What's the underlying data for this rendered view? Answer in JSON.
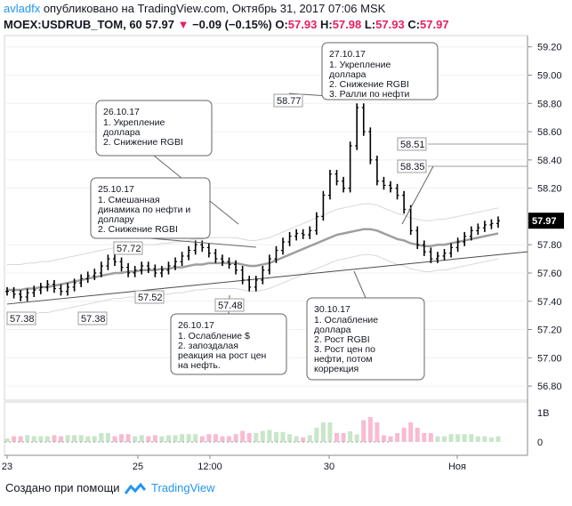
{
  "header": {
    "author": "avladfx",
    "published": "опубликовано на TradingView.com, Октябрь 31, 2017 07:06 MSK",
    "symbol": "MOEX:USDRUB_TOM, 60",
    "last": "57.97",
    "arrow": "▼",
    "change": "−0.09 (−0.15%)",
    "o_label": "O:",
    "o": "57.93",
    "h_label": "H:",
    "h": "57.98",
    "l_label": "L:",
    "l": "57.93",
    "c_label": "C:",
    "c": "57.97"
  },
  "footer": {
    "created_with": "Создано при помощи",
    "brand": "TradingView"
  },
  "colors": {
    "accent": "#2196f3",
    "down": "#e91e63",
    "bar": "#000000",
    "ma": "#9e9e9e",
    "volume_up": "#c8e6c9",
    "volume_down": "#f8bbd0"
  },
  "chart_data": {
    "type": "line",
    "series": [
      {
        "name": "USDRUB_TOM",
        "values": [
          57.47,
          57.45,
          57.43,
          57.46,
          57.48,
          57.5,
          57.52,
          57.49,
          57.47,
          57.5,
          57.53,
          57.56,
          57.58,
          57.6,
          57.65,
          57.7,
          57.68,
          57.64,
          57.6,
          57.62,
          57.65,
          57.63,
          57.6,
          57.62,
          57.65,
          57.68,
          57.72,
          57.76,
          57.8,
          57.78,
          57.74,
          57.7,
          57.68,
          57.66,
          57.62,
          57.55,
          57.5,
          57.55,
          57.62,
          57.7,
          57.76,
          57.82,
          57.86,
          57.88,
          57.87,
          57.9,
          58.0,
          58.15,
          58.3,
          58.25,
          58.2,
          58.5,
          58.77,
          58.6,
          58.4,
          58.25,
          58.22,
          58.2,
          58.15,
          58.05,
          57.9,
          57.8,
          57.75,
          57.7,
          57.72,
          57.74,
          57.78,
          57.82,
          57.86,
          57.9,
          57.92,
          57.94,
          57.95,
          57.97
        ]
      }
    ],
    "ma_series": [
      {
        "name": "SMA",
        "values": [
          57.48,
          57.48,
          57.48,
          57.49,
          57.49,
          57.5,
          57.5,
          57.51,
          57.52,
          57.53,
          57.54,
          57.55,
          57.56,
          57.57,
          57.58,
          57.59,
          57.6,
          57.6,
          57.61,
          57.61,
          57.62,
          57.62,
          57.62,
          57.63,
          57.63,
          57.64,
          57.64,
          57.65,
          57.66,
          57.66,
          57.67,
          57.67,
          57.67,
          57.67,
          57.67,
          57.66,
          57.65,
          57.65,
          57.66,
          57.67,
          57.69,
          57.71,
          57.73,
          57.75,
          57.77,
          57.79,
          57.81,
          57.83,
          57.85,
          57.87,
          57.88,
          57.89,
          57.9,
          57.91,
          57.91,
          57.9,
          57.88,
          57.86,
          57.84,
          57.83,
          57.81,
          57.8,
          57.79,
          57.79,
          57.8,
          57.8,
          57.81,
          57.82,
          57.83,
          57.84,
          57.85,
          57.86,
          57.87,
          57.88
        ]
      }
    ],
    "x_ticks": [
      "23",
      "25",
      "12:00",
      "30",
      "Ноя"
    ],
    "y_ticks": [
      59.2,
      59.0,
      58.8,
      58.6,
      58.4,
      58.2,
      57.8,
      57.6,
      57.4,
      57.2,
      57.0,
      56.8
    ],
    "ylim": [
      56.7,
      59.28
    ],
    "volume_ticks": [
      "1B",
      "0"
    ],
    "last_price": "57.97",
    "trendline": {
      "from": 57.38,
      "to": 57.75
    },
    "price_labels": [
      "57.38",
      "57.38",
      "57.72",
      "57.52",
      "57.48",
      "58.77",
      "58.51",
      "58.35"
    ],
    "annotations": [
      {
        "date": "26.10.17",
        "lines": [
          "1. Укрепление",
          "доллара",
          "2. Снижение RGBI"
        ]
      },
      {
        "date": "25.10.17",
        "lines": [
          "1. Смешанная",
          "динамика по нефти и",
          "доллару",
          "2. Снижение RGBI"
        ]
      },
      {
        "date": "27.10.17",
        "lines": [
          "1. Укрепление",
          "доллара",
          "2. Снижение RGBI",
          "3. Ралли по нефти"
        ]
      },
      {
        "date": "26.10.17",
        "lines": [
          "1. Ослабление $",
          "2. запоздалая",
          "реакция на рост цен",
          "на нефть."
        ]
      },
      {
        "date": "30.10.17",
        "lines": [
          "1. Ослабление",
          "доллара",
          "2. Рост RGBI",
          "3. Рост цен по",
          "нефти, потом",
          "коррекция"
        ]
      }
    ]
  }
}
